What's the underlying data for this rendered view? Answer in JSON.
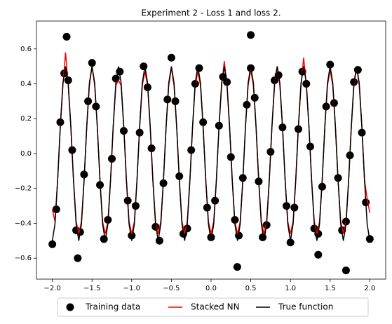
{
  "chart_data": {
    "type": "line",
    "title": "Experiment 2 - Loss 1 and loss 2.",
    "xlim": [
      -2.2,
      2.2
    ],
    "ylim": [
      -0.72,
      0.76
    ],
    "xticks": [
      {
        "value": -2,
        "label": "−2.0"
      },
      {
        "value": -1.5,
        "label": "−1.5"
      },
      {
        "value": -1,
        "label": "−1.0"
      },
      {
        "value": -0.5,
        "label": "−0.5"
      },
      {
        "value": 0,
        "label": "0.0"
      },
      0.5,
      {
        "value": 1,
        "label": "1.0"
      },
      1.5,
      {
        "value": 2,
        "label": "2.0"
      }
    ],
    "yticks": [
      {
        "value": -0.6,
        "label": "−0.6"
      },
      {
        "value": -0.4,
        "label": "−0.4"
      },
      {
        "value": -0.2,
        "label": "−0.2"
      },
      {
        "value": 0,
        "label": "0.0"
      },
      0.2,
      0.4,
      0.6
    ],
    "legend": "lower center",
    "x": [
      -2,
      -1.9667,
      -1.9333,
      -1.9,
      -1.8667,
      -1.8333,
      -1.8,
      -1.7667,
      -1.7333,
      -1.7,
      -1.6667,
      -1.6333,
      -1.6,
      -1.5667,
      -1.5333,
      -1.5,
      -1.4667,
      -1.4333,
      -1.4,
      -1.3667,
      -1.3333,
      -1.3,
      -1.2667,
      -1.2333,
      -1.2,
      -1.1667,
      -1.1333,
      -1.1,
      -1.0667,
      -1.0333,
      -1,
      -0.9667,
      -0.9333,
      -0.9,
      -0.8667,
      -0.8333,
      -0.8,
      -0.7667,
      -0.7333,
      -0.7,
      -0.6667,
      -0.6333,
      -0.6,
      -0.5667,
      -0.5333,
      -0.5,
      -0.4667,
      -0.4333,
      -0.4,
      -0.3667,
      -0.3333,
      -0.3,
      -0.2667,
      -0.2333,
      -0.2,
      -0.1667,
      -0.1333,
      -0.1,
      -0.0667,
      -0.0333,
      0,
      0.0333,
      0.0667,
      0.1,
      0.1333,
      0.1667,
      0.2,
      0.2333,
      0.2667,
      0.3,
      0.3333,
      0.3667,
      0.4,
      0.4333,
      0.4667,
      0.5,
      0.5333,
      0.5667,
      0.6,
      0.6333,
      0.6667,
      0.7,
      0.7333,
      0.7667,
      0.8,
      0.8333,
      0.8667,
      0.9,
      0.9333,
      0.9667,
      1,
      1.0333,
      1.0667,
      1.1,
      1.1333,
      1.1667,
      1.2,
      1.2333,
      1.2667,
      1.3,
      1.3333,
      1.3667,
      1.4,
      1.4333,
      1.4667,
      1.5,
      1.5333,
      1.5667,
      1.6,
      1.6333,
      1.6667,
      1.7,
      1.7333,
      1.7667,
      1.8,
      1.8333,
      1.8667,
      1.9,
      1.9333,
      1.9667,
      2
    ],
    "series": [
      {
        "name": "Training data",
        "type": "scatter",
        "color": "#000000",
        "x": [
          -2,
          -1.95,
          -1.9,
          -1.85,
          -1.8,
          -1.75,
          -1.7,
          -1.65,
          -1.6,
          -1.55,
          -1.5,
          -1.45,
          -1.4,
          -1.35,
          -1.3,
          -1.25,
          -1.2,
          -1.15,
          -1.1,
          -1.05,
          -1,
          -0.95,
          -0.9,
          -0.85,
          -0.8,
          -0.75,
          -0.7,
          -0.65,
          -0.6,
          -0.55,
          -0.5,
          -0.45,
          -0.4,
          -0.35,
          -0.3,
          -0.25,
          -0.2,
          -0.15,
          -0.1,
          -0.05,
          0,
          0.05,
          0.1,
          0.15,
          0.2,
          0.25,
          0.3,
          0.35,
          0.4,
          0.45,
          0.5,
          0.55,
          0.6,
          0.65,
          0.7,
          0.75,
          0.8,
          0.85,
          0.9,
          0.95,
          1,
          1.05,
          1.1,
          1.15,
          1.2,
          1.25,
          1.3,
          1.35,
          1.4,
          1.45,
          1.5,
          1.55,
          1.6,
          1.65,
          1.7,
          1.75,
          1.8,
          1.85,
          1.9,
          1.95,
          2,
          -1.82,
          0.5,
          0.33,
          1.7,
          -1.68,
          1.35
        ],
        "values": [
          -0.52,
          -0.32,
          0.18,
          0.46,
          0.42,
          0.02,
          -0.44,
          -0.45,
          -0.12,
          0.3,
          0.52,
          0.27,
          -0.18,
          -0.49,
          -0.38,
          -0.03,
          0.43,
          0.47,
          0.13,
          -0.27,
          -0.47,
          -0.3,
          0.12,
          0.5,
          0.38,
          0.03,
          -0.42,
          -0.5,
          -0.17,
          0.31,
          0.55,
          0.3,
          -0.13,
          -0.46,
          -0.43,
          0.02,
          0.4,
          0.49,
          0.18,
          -0.31,
          -0.48,
          -0.27,
          0.16,
          0.44,
          0.41,
          -0.02,
          -0.38,
          -0.47,
          -0.14,
          0.28,
          0.49,
          0.32,
          -0.16,
          -0.48,
          -0.41,
          0.01,
          0.42,
          0.45,
          0.15,
          -0.3,
          -0.51,
          -0.31,
          0.14,
          0.47,
          0.4,
          0.04,
          -0.43,
          -0.46,
          -0.19,
          0.27,
          0.51,
          0.29,
          -0.14,
          -0.44,
          -0.39,
          -0.01,
          0.41,
          0.48,
          0.12,
          -0.28,
          -0.49,
          0.67,
          0.68,
          -0.65,
          -0.67,
          -0.6,
          -0.58
        ]
      },
      {
        "name": "Stacked NN",
        "type": "line",
        "color": "#ff0000",
        "values": [
          -0.32,
          -0.39,
          -0.15,
          0.15,
          0.39,
          0.58,
          0.39,
          0.15,
          -0.15,
          -0.39,
          -0.46,
          -0.39,
          -0.15,
          0.15,
          0.39,
          0.5,
          0.39,
          0.15,
          -0.15,
          -0.39,
          -0.46,
          -0.39,
          -0.15,
          0.15,
          0.39,
          0.42,
          0.39,
          0.15,
          -0.15,
          -0.39,
          -0.46,
          -0.39,
          -0.15,
          0.15,
          0.39,
          0.47,
          0.39,
          0.15,
          -0.15,
          -0.39,
          -0.46,
          -0.39,
          -0.15,
          0.15,
          0.39,
          0.49,
          0.39,
          0.15,
          -0.15,
          -0.39,
          -0.46,
          -0.39,
          -0.15,
          0.15,
          0.39,
          0.47,
          0.39,
          0.15,
          -0.15,
          -0.39,
          -0.46,
          -0.39,
          -0.15,
          0.15,
          0.39,
          0.53,
          0.39,
          0.15,
          -0.15,
          -0.39,
          -0.46,
          -0.39,
          -0.15,
          0.15,
          0.39,
          0.48,
          0.39,
          0.15,
          -0.15,
          -0.39,
          -0.46,
          -0.39,
          -0.15,
          0.15,
          0.39,
          0.5,
          0.39,
          0.15,
          -0.15,
          -0.39,
          -0.46,
          -0.39,
          -0.15,
          0.15,
          0.39,
          0.55,
          0.39,
          0.15,
          -0.15,
          -0.39,
          -0.46,
          -0.39,
          -0.15,
          0.15,
          0.39,
          0.48,
          0.39,
          0.15,
          -0.15,
          -0.39,
          -0.46,
          -0.39,
          -0.15,
          0.15,
          0.39,
          0.5,
          0.39,
          0.15,
          -0.15,
          -0.26,
          -0.34
        ]
      },
      {
        "name": "True function",
        "type": "line",
        "color": "#000000",
        "values": [
          -0.5,
          -0.4045,
          -0.1545,
          0.1545,
          0.4045,
          0.5,
          0.4045,
          0.1545,
          -0.1545,
          -0.4045,
          -0.5,
          -0.4045,
          -0.1545,
          0.1545,
          0.4045,
          0.5,
          0.4045,
          0.1545,
          -0.1545,
          -0.4045,
          -0.5,
          -0.4045,
          -0.1545,
          0.1545,
          0.4045,
          0.5,
          0.4045,
          0.1545,
          -0.1545,
          -0.4045,
          -0.5,
          -0.4045,
          -0.1545,
          0.1545,
          0.4045,
          0.5,
          0.4045,
          0.1545,
          -0.1545,
          -0.4045,
          -0.5,
          -0.4045,
          -0.1545,
          0.1545,
          0.4045,
          0.5,
          0.4045,
          0.1545,
          -0.1545,
          -0.4045,
          -0.5,
          -0.4045,
          -0.1545,
          0.1545,
          0.4045,
          0.5,
          0.4045,
          0.1545,
          -0.1545,
          -0.4045,
          -0.5,
          -0.4045,
          -0.1545,
          0.1545,
          0.4045,
          0.5,
          0.4045,
          0.1545,
          -0.1545,
          -0.4045,
          -0.5,
          -0.4045,
          -0.1545,
          0.1545,
          0.4045,
          0.5,
          0.4045,
          0.1545,
          -0.1545,
          -0.4045,
          -0.5,
          -0.4045,
          -0.1545,
          0.1545,
          0.4045,
          0.5,
          0.4045,
          0.1545,
          -0.1545,
          -0.4045,
          -0.5,
          -0.4045,
          -0.1545,
          0.1545,
          0.4045,
          0.5,
          0.4045,
          0.1545,
          -0.1545,
          -0.4045,
          -0.5,
          -0.4045,
          -0.1545,
          0.1545,
          0.4045,
          0.5,
          0.4045,
          0.1545,
          -0.1545,
          -0.4045,
          -0.5,
          -0.4045,
          -0.1545,
          0.1545,
          0.4045,
          0.5,
          0.4045,
          0.1545,
          -0.1545,
          -0.4045,
          -0.5
        ]
      }
    ]
  }
}
